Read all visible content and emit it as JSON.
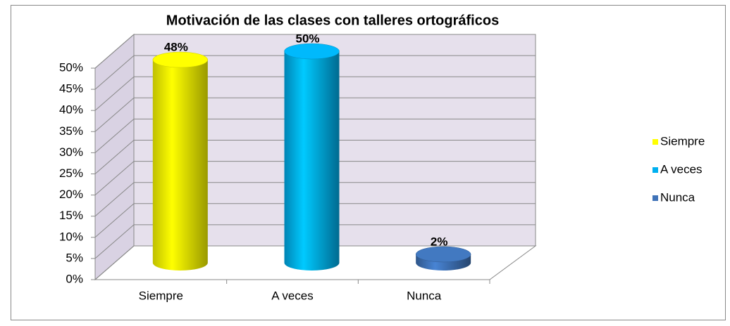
{
  "chart_data": {
    "type": "bar3d",
    "title": "Motivación de las clases con talleres ortográficos",
    "categories": [
      "Siempre",
      "A veces",
      "Nunca"
    ],
    "values": [
      48,
      50,
      2
    ],
    "value_labels": [
      "48%",
      "50%",
      "2%"
    ],
    "colors": [
      "#ffff00",
      "#00b0f0",
      "#3f73b8"
    ],
    "legend": "right",
    "ylim": [
      0,
      50
    ],
    "yticks": [
      {
        "value": 0,
        "label": "0%"
      },
      {
        "value": 5,
        "label": "5%"
      },
      {
        "value": 10,
        "label": "10%"
      },
      {
        "value": 15,
        "label": "15%"
      },
      {
        "value": 20,
        "label": "20%"
      },
      {
        "value": 25,
        "label": "25%"
      },
      {
        "value": 30,
        "label": "30%"
      },
      {
        "value": 35,
        "label": "35%"
      },
      {
        "value": 40,
        "label": "40%"
      },
      {
        "value": 45,
        "label": "45%"
      },
      {
        "value": 50,
        "label": "50%"
      }
    ],
    "grid": true
  }
}
